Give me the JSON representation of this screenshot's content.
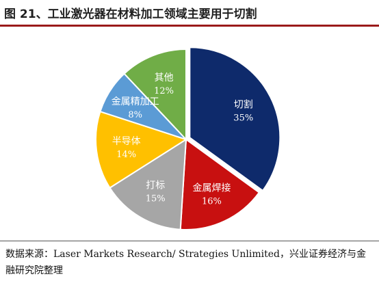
{
  "header": {
    "title": "图 21、工业激光器在材料加工领域主要用于切割"
  },
  "chart_data": {
    "type": "pie",
    "title": "",
    "series": [
      {
        "label": "切割",
        "value": 35,
        "pct_text": "35%",
        "color": "#0e2a6b"
      },
      {
        "label": "金属焊接",
        "value": 16,
        "pct_text": "16%",
        "color": "#c81010"
      },
      {
        "label": "打标",
        "value": 15,
        "pct_text": "15%",
        "color": "#a6a6a6"
      },
      {
        "label": "半导体",
        "value": 14,
        "pct_text": "14%",
        "color": "#ffc000"
      },
      {
        "label": "金属精加工",
        "value": 8,
        "pct_text": "8%",
        "color": "#5b9bd5"
      },
      {
        "label": "其他",
        "value": 12,
        "pct_text": "12%",
        "color": "#70ad47"
      }
    ],
    "start": "12 o'clock",
    "direction": "clockwise"
  },
  "footer": {
    "source": "数据来源：Laser Markets Research/ Strategies Unlimited，兴业证券经济与金融研究院整理"
  }
}
